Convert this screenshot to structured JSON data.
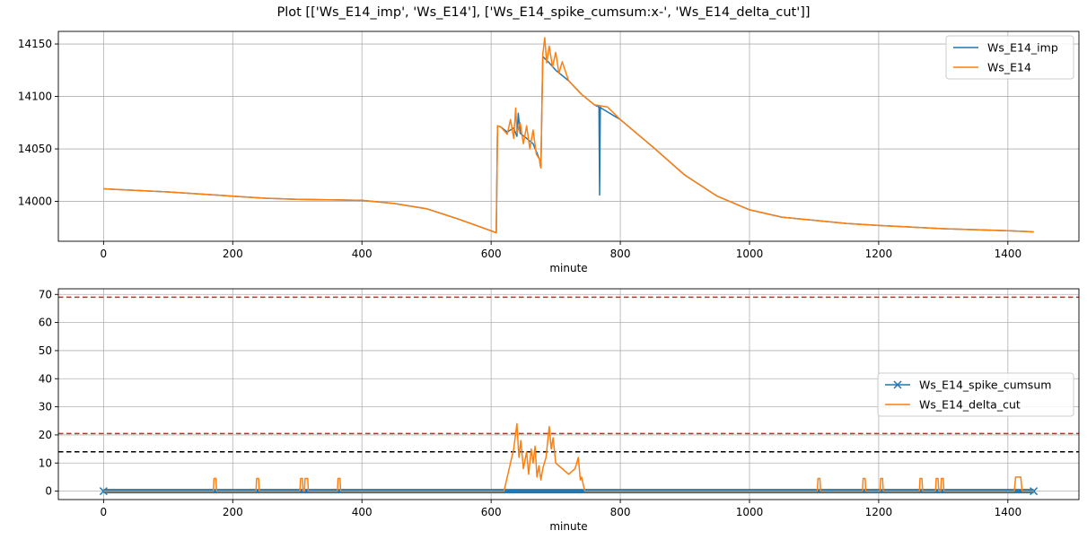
{
  "figure": {
    "title": "Plot [['Ws_E14_imp', 'Ws_E14'], ['Ws_E14_spike_cumsum:x-', 'Ws_E14_delta_cut']]"
  },
  "chart_data": [
    {
      "type": "line",
      "xlabel": "minute",
      "ylabel": "",
      "xlim": [
        -70,
        1510
      ],
      "ylim": [
        13962,
        14162
      ],
      "xticks": [
        0,
        200,
        400,
        600,
        800,
        1000,
        1200,
        1400
      ],
      "yticks": [
        14000,
        14050,
        14100,
        14150
      ],
      "grid": true,
      "legend": "top-right",
      "series": [
        {
          "name": "Ws_E14_imp",
          "color": "#1f77b4",
          "marker": "none",
          "x": [
            0,
            100,
            200,
            250,
            300,
            400,
            450,
            500,
            550,
            600,
            608,
            610,
            615,
            625,
            635,
            640,
            642,
            645,
            655,
            665,
            675,
            676,
            677,
            680,
            690,
            700,
            720,
            740,
            760,
            767,
            768,
            769,
            770,
            800,
            850,
            900,
            950,
            1000,
            1050,
            1100,
            1150,
            1200,
            1300,
            1400,
            1440
          ],
          "y": [
            14012,
            14009,
            14005,
            14003,
            14002,
            14001,
            13998,
            13993,
            13983,
            13972,
            13970,
            14072,
            14071,
            14066,
            14070,
            14062,
            14084,
            14065,
            14060,
            14055,
            14040,
            14035,
            14032,
            14138,
            14132,
            14125,
            14115,
            14102,
            14092,
            14090,
            14006,
            14090,
            14089,
            14078,
            14052,
            14025,
            14005,
            13992,
            13985,
            13982,
            13979,
            13977,
            13974,
            13972,
            13971
          ]
        },
        {
          "name": "Ws_E14",
          "color": "#ff7f0e",
          "marker": "none",
          "x": [
            0,
            100,
            200,
            250,
            300,
            400,
            450,
            500,
            550,
            600,
            608,
            610,
            615,
            625,
            630,
            635,
            638,
            640,
            645,
            650,
            655,
            660,
            665,
            670,
            675,
            676,
            677,
            680,
            683,
            686,
            690,
            695,
            700,
            705,
            710,
            720,
            740,
            760,
            780,
            800,
            850,
            900,
            950,
            1000,
            1050,
            1100,
            1150,
            1200,
            1300,
            1400,
            1440
          ],
          "y": [
            14012,
            14009,
            14005,
            14003,
            14002,
            14001,
            13998,
            13993,
            13983,
            13972,
            13970,
            14072,
            14071,
            14064,
            14078,
            14060,
            14089,
            14065,
            14075,
            14055,
            14072,
            14050,
            14068,
            14045,
            14040,
            14035,
            14032,
            14140,
            14156,
            14132,
            14148,
            14128,
            14142,
            14122,
            14133,
            14115,
            14102,
            14092,
            14090,
            14078,
            14052,
            14025,
            14005,
            13992,
            13985,
            13982,
            13979,
            13977,
            13974,
            13972,
            13971
          ]
        }
      ]
    },
    {
      "type": "line",
      "xlabel": "minute",
      "ylabel": "",
      "xlim": [
        -70,
        1510
      ],
      "ylim": [
        -3,
        72
      ],
      "xticks": [
        0,
        200,
        400,
        600,
        800,
        1000,
        1200,
        1400
      ],
      "yticks": [
        0,
        10,
        20,
        30,
        40,
        50,
        60,
        70
      ],
      "grid": true,
      "legend": "center-right",
      "hlines": [
        {
          "y": 69,
          "color": "#d62728",
          "style": "dashed"
        },
        {
          "y": 20.5,
          "color": "#d62728",
          "style": "dashed"
        },
        {
          "y": 14,
          "color": "#000000",
          "style": "dashed"
        }
      ],
      "series": [
        {
          "name": "Ws_E14_spike_cumsum",
          "color": "#1f77b4",
          "marker": "x",
          "x": [
            0,
            1440
          ],
          "y": [
            0,
            0
          ]
        },
        {
          "name": "Ws_E14_delta_cut",
          "color": "#ff7f0e",
          "marker": "none",
          "x": [
            0,
            170,
            171,
            174,
            175,
            236,
            237,
            240,
            241,
            304,
            305,
            308,
            309,
            311,
            312,
            316,
            317,
            362,
            363,
            366,
            367,
            620,
            625,
            630,
            635,
            640,
            643,
            646,
            650,
            655,
            658,
            662,
            665,
            668,
            671,
            674,
            677,
            680,
            685,
            690,
            693,
            696,
            700,
            710,
            720,
            730,
            735,
            738,
            740,
            745,
            1105,
            1106,
            1109,
            1110,
            1175,
            1176,
            1179,
            1180,
            1202,
            1203,
            1206,
            1207,
            1263,
            1264,
            1267,
            1268,
            1288,
            1289,
            1292,
            1293,
            1296,
            1297,
            1300,
            1301,
            1410,
            1412,
            1420,
            1422,
            1440
          ],
          "y": [
            0,
            0,
            4.5,
            4.5,
            0,
            0,
            4.5,
            4.5,
            0,
            0,
            4.5,
            4.5,
            0,
            0,
            4.5,
            4.5,
            0,
            0,
            4.5,
            4.5,
            0,
            0,
            5,
            10,
            15,
            24,
            12,
            18,
            8,
            14,
            6,
            15,
            10,
            16,
            5,
            9,
            4,
            8,
            12,
            23,
            15,
            19,
            10,
            8,
            6,
            8,
            12,
            4,
            5,
            0,
            0,
            4.5,
            4.5,
            0,
            0,
            4.5,
            4.5,
            0,
            0,
            4.5,
            4.5,
            0,
            0,
            4.5,
            4.5,
            0,
            0,
            4.5,
            4.5,
            0,
            0,
            4.5,
            4.5,
            0,
            0,
            5,
            5,
            0,
            0
          ]
        }
      ]
    }
  ]
}
